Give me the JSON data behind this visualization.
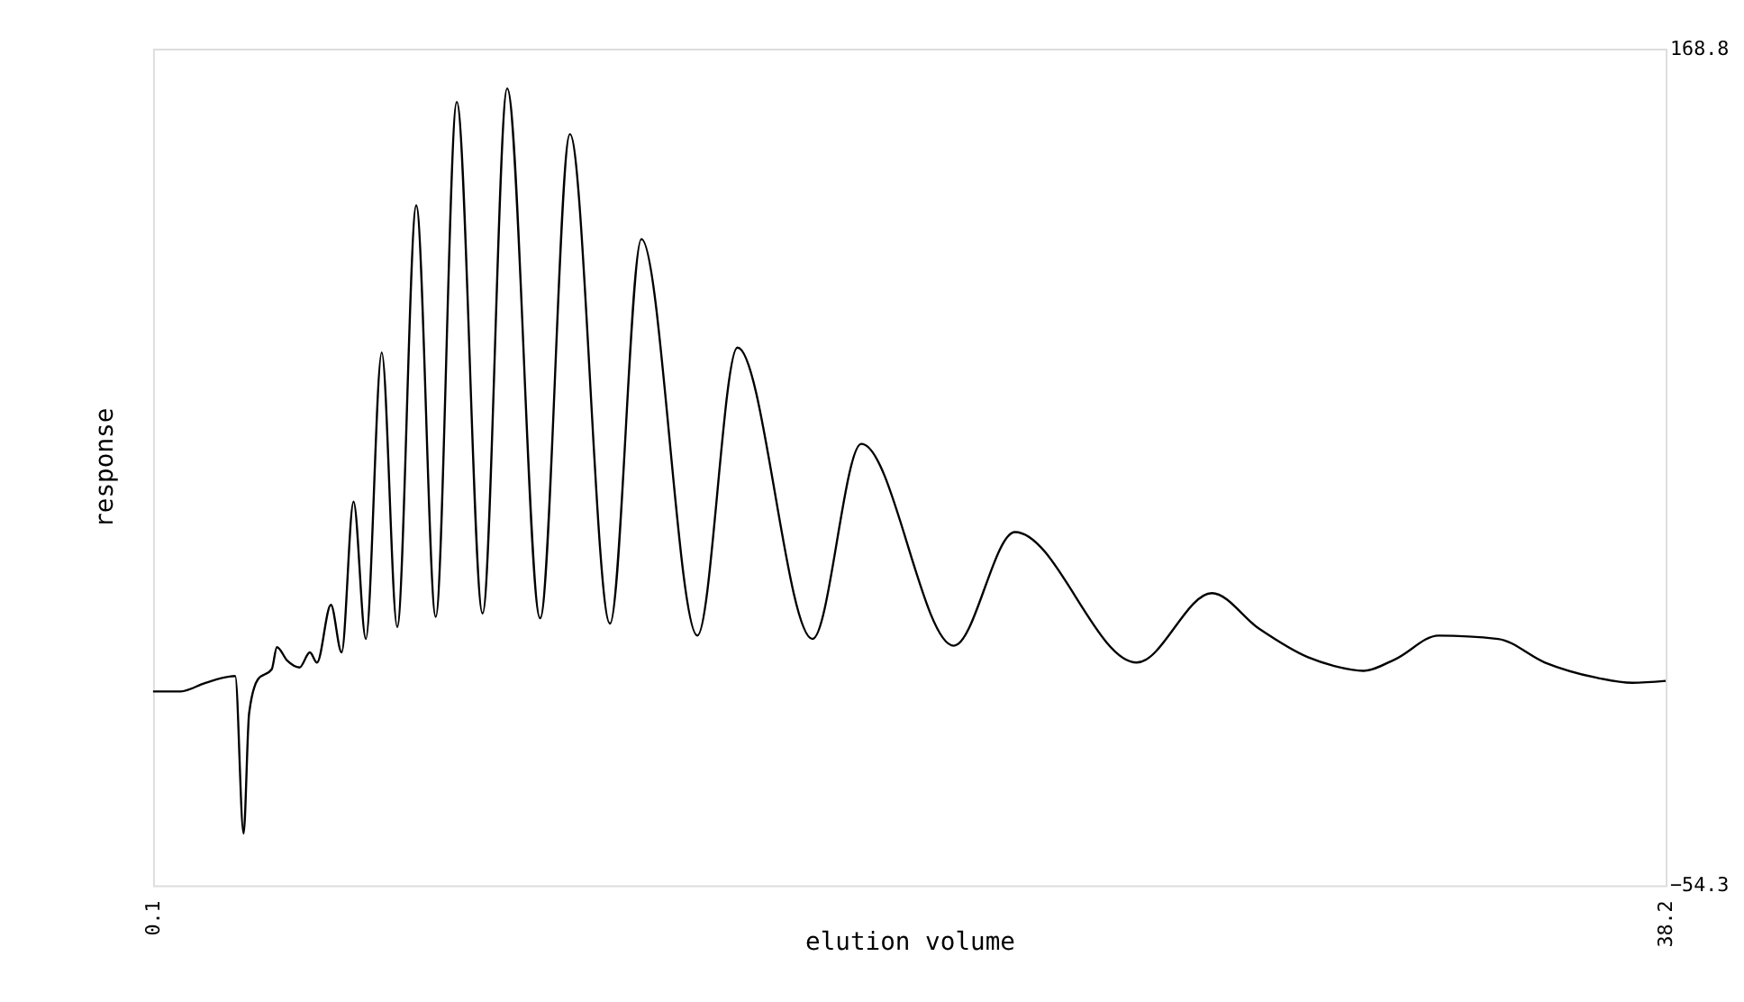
{
  "chart_data": {
    "type": "line",
    "xlabel": "elution volume",
    "ylabel": "response",
    "x": [
      0.1,
      0.8,
      1.42,
      2.17,
      2.38,
      2.52,
      2.74,
      3.09,
      3.22,
      3.48,
      3.79,
      4.05,
      4.23,
      4.58,
      4.85,
      5.15,
      5.46,
      5.86,
      6.25,
      6.73,
      7.22,
      7.75,
      8.4,
      9.02,
      9.85,
      10.6,
      11.61,
      12.4,
      13.81,
      14.82,
      16.71,
      17.94,
      20.27,
      21.81,
      24.88,
      26.77,
      27.96,
      29.19,
      29.85,
      30.59,
      31.39,
      32.48,
      33.98,
      35.16,
      36.44,
      37.36,
      38.2
    ],
    "series": [
      {
        "color": "#000000",
        "values": [
          -2.6,
          -2.6,
          -0.3,
          1.5,
          -40.5,
          -8.4,
          0.6,
          3.3,
          9.2,
          5.6,
          3.8,
          7.8,
          5.1,
          20.5,
          7.8,
          48.0,
          11.4,
          87.8,
          14.6,
          127.0,
          17.3,
          154.6,
          18.2,
          158.2,
          16.9,
          146.0,
          15.5,
          118.0,
          12.3,
          89.1,
          11.4,
          63.4,
          9.6,
          39.9,
          5.1,
          23.6,
          14.1,
          6.5,
          4.2,
          2.9,
          6.0,
          12.3,
          11.4,
          5.1,
          1.1,
          -0.3,
          0.2
        ]
      }
    ],
    "xlim": [
      0.1,
      38.2
    ],
    "ylim": [
      -54.3,
      168.8
    ],
    "xticks": [
      0.1,
      38.2
    ],
    "yticks": [
      168.8,
      -54.3
    ],
    "line_style": "solid",
    "marker": "none"
  }
}
